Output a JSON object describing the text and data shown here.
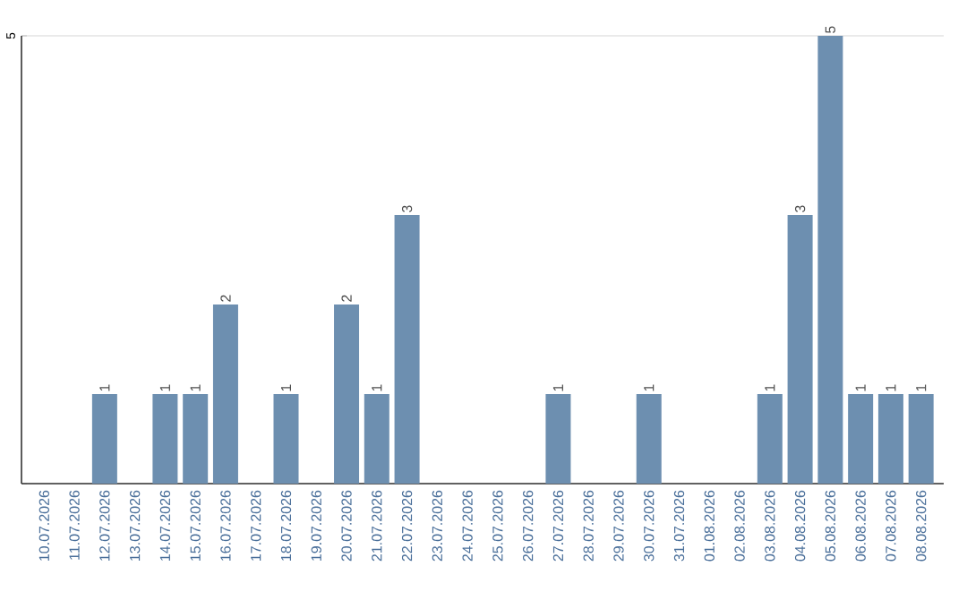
{
  "chart_data": {
    "type": "bar",
    "categories": [
      "10.07.2026",
      "11.07.2026",
      "12.07.2026",
      "13.07.2026",
      "14.07.2026",
      "15.07.2026",
      "16.07.2026",
      "17.07.2026",
      "18.07.2026",
      "19.07.2026",
      "20.07.2026",
      "21.07.2026",
      "22.07.2026",
      "23.07.2026",
      "24.07.2026",
      "25.07.2026",
      "26.07.2026",
      "27.07.2026",
      "28.07.2026",
      "29.07.2026",
      "30.07.2026",
      "31.07.2026",
      "01.08.2026",
      "02.08.2026",
      "03.08.2026",
      "04.08.2026",
      "05.08.2026",
      "06.08.2026",
      "07.08.2026",
      "08.08.2026"
    ],
    "values": [
      0,
      0,
      1,
      0,
      1,
      1,
      2,
      0,
      1,
      0,
      2,
      1,
      3,
      0,
      0,
      0,
      0,
      1,
      0,
      0,
      1,
      0,
      0,
      0,
      1,
      3,
      5,
      1,
      1,
      1
    ],
    "value_labels": [
      null,
      null,
      "1",
      null,
      "1",
      "1",
      "2",
      null,
      "1",
      null,
      "2",
      "1",
      "3",
      null,
      null,
      null,
      null,
      "1",
      null,
      null,
      "1",
      null,
      null,
      null,
      "1",
      "3",
      "5",
      "1",
      "1",
      "1"
    ],
    "color": "#6d8fb0",
    "ylim": [
      0,
      5
    ],
    "yticks": [
      {
        "value": 0,
        "label": null
      },
      5
    ],
    "grid": "y"
  }
}
